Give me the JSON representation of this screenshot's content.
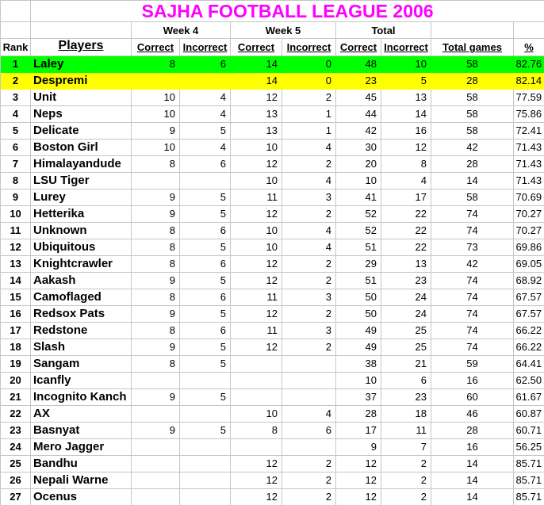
{
  "title": "SAJHA FOOTBALL LEAGUE 2006",
  "colors": {
    "title_text": "#FF00FF",
    "rank1_row_bg": "#00FF00",
    "rank2_row_bg": "#FFFF00",
    "gridline": "#C6C6C6"
  },
  "columns": {
    "rank": "Rank",
    "players": "Players",
    "week4": "Week 4",
    "week5": "Week 5",
    "total": "Total",
    "correct": "Correct",
    "incorrect": "Incorrect",
    "total_games": "Total games",
    "percent": "%"
  },
  "rows": [
    {
      "rank": "1",
      "player": "Laley",
      "w4c": "8",
      "w4i": "6",
      "w5c": "14",
      "w5i": "0",
      "tc": "48",
      "ti": "10",
      "games": "58",
      "pct": "82.76",
      "highlight": "green"
    },
    {
      "rank": "2",
      "player": "Despremi",
      "w4c": "",
      "w4i": "",
      "w5c": "14",
      "w5i": "0",
      "tc": "23",
      "ti": "5",
      "games": "28",
      "pct": "82.14",
      "highlight": "yellow"
    },
    {
      "rank": "3",
      "player": "Unit",
      "w4c": "10",
      "w4i": "4",
      "w5c": "12",
      "w5i": "2",
      "tc": "45",
      "ti": "13",
      "games": "58",
      "pct": "77.59",
      "highlight": ""
    },
    {
      "rank": "4",
      "player": "Neps",
      "w4c": "10",
      "w4i": "4",
      "w5c": "13",
      "w5i": "1",
      "tc": "44",
      "ti": "14",
      "games": "58",
      "pct": "75.86",
      "highlight": ""
    },
    {
      "rank": "5",
      "player": "Delicate",
      "w4c": "9",
      "w4i": "5",
      "w5c": "13",
      "w5i": "1",
      "tc": "42",
      "ti": "16",
      "games": "58",
      "pct": "72.41",
      "highlight": ""
    },
    {
      "rank": "6",
      "player": "Boston Girl",
      "w4c": "10",
      "w4i": "4",
      "w5c": "10",
      "w5i": "4",
      "tc": "30",
      "ti": "12",
      "games": "42",
      "pct": "71.43",
      "highlight": ""
    },
    {
      "rank": "7",
      "player": "Himalayandude",
      "w4c": "8",
      "w4i": "6",
      "w5c": "12",
      "w5i": "2",
      "tc": "20",
      "ti": "8",
      "games": "28",
      "pct": "71.43",
      "highlight": ""
    },
    {
      "rank": "8",
      "player": "LSU Tiger",
      "w4c": "",
      "w4i": "",
      "w5c": "10",
      "w5i": "4",
      "tc": "10",
      "ti": "4",
      "games": "14",
      "pct": "71.43",
      "highlight": ""
    },
    {
      "rank": "9",
      "player": "Lurey",
      "w4c": "9",
      "w4i": "5",
      "w5c": "11",
      "w5i": "3",
      "tc": "41",
      "ti": "17",
      "games": "58",
      "pct": "70.69",
      "highlight": ""
    },
    {
      "rank": "10",
      "player": "Hetterika",
      "w4c": "9",
      "w4i": "5",
      "w5c": "12",
      "w5i": "2",
      "tc": "52",
      "ti": "22",
      "games": "74",
      "pct": "70.27",
      "highlight": ""
    },
    {
      "rank": "11",
      "player": "Unknown",
      "w4c": "8",
      "w4i": "6",
      "w5c": "10",
      "w5i": "4",
      "tc": "52",
      "ti": "22",
      "games": "74",
      "pct": "70.27",
      "highlight": ""
    },
    {
      "rank": "12",
      "player": "Ubiquitous",
      "w4c": "8",
      "w4i": "5",
      "w5c": "10",
      "w5i": "4",
      "tc": "51",
      "ti": "22",
      "games": "73",
      "pct": "69.86",
      "highlight": ""
    },
    {
      "rank": "13",
      "player": "Knightcrawler",
      "w4c": "8",
      "w4i": "6",
      "w5c": "12",
      "w5i": "2",
      "tc": "29",
      "ti": "13",
      "games": "42",
      "pct": "69.05",
      "highlight": ""
    },
    {
      "rank": "14",
      "player": "Aakash",
      "w4c": "9",
      "w4i": "5",
      "w5c": "12",
      "w5i": "2",
      "tc": "51",
      "ti": "23",
      "games": "74",
      "pct": "68.92",
      "highlight": ""
    },
    {
      "rank": "15",
      "player": "Camoflaged",
      "w4c": "8",
      "w4i": "6",
      "w5c": "11",
      "w5i": "3",
      "tc": "50",
      "ti": "24",
      "games": "74",
      "pct": "67.57",
      "highlight": ""
    },
    {
      "rank": "16",
      "player": "Redsox Pats",
      "w4c": "9",
      "w4i": "5",
      "w5c": "12",
      "w5i": "2",
      "tc": "50",
      "ti": "24",
      "games": "74",
      "pct": "67.57",
      "highlight": ""
    },
    {
      "rank": "17",
      "player": "Redstone",
      "w4c": "8",
      "w4i": "6",
      "w5c": "11",
      "w5i": "3",
      "tc": "49",
      "ti": "25",
      "games": "74",
      "pct": "66.22",
      "highlight": ""
    },
    {
      "rank": "18",
      "player": "Slash",
      "w4c": "9",
      "w4i": "5",
      "w5c": "12",
      "w5i": "2",
      "tc": "49",
      "ti": "25",
      "games": "74",
      "pct": "66.22",
      "highlight": ""
    },
    {
      "rank": "19",
      "player": "Sangam",
      "w4c": "8",
      "w4i": "5",
      "w5c": "",
      "w5i": "",
      "tc": "38",
      "ti": "21",
      "games": "59",
      "pct": "64.41",
      "highlight": ""
    },
    {
      "rank": "20",
      "player": "Icanfly",
      "w4c": "",
      "w4i": "",
      "w5c": "",
      "w5i": "",
      "tc": "10",
      "ti": "6",
      "games": "16",
      "pct": "62.50",
      "highlight": ""
    },
    {
      "rank": "21",
      "player": "Incognito Kanch",
      "w4c": "9",
      "w4i": "5",
      "w5c": "",
      "w5i": "",
      "tc": "37",
      "ti": "23",
      "games": "60",
      "pct": "61.67",
      "highlight": ""
    },
    {
      "rank": "22",
      "player": "AX",
      "w4c": "",
      "w4i": "",
      "w5c": "10",
      "w5i": "4",
      "tc": "28",
      "ti": "18",
      "games": "46",
      "pct": "60.87",
      "highlight": ""
    },
    {
      "rank": "23",
      "player": "Basnyat",
      "w4c": "9",
      "w4i": "5",
      "w5c": "8",
      "w5i": "6",
      "tc": "17",
      "ti": "11",
      "games": "28",
      "pct": "60.71",
      "highlight": ""
    },
    {
      "rank": "24",
      "player": "Mero Jagger",
      "w4c": "",
      "w4i": "",
      "w5c": "",
      "w5i": "",
      "tc": "9",
      "ti": "7",
      "games": "16",
      "pct": "56.25",
      "highlight": ""
    },
    {
      "rank": "25",
      "player": "Bandhu",
      "w4c": "",
      "w4i": "",
      "w5c": "12",
      "w5i": "2",
      "tc": "12",
      "ti": "2",
      "games": "14",
      "pct": "85.71",
      "highlight": ""
    },
    {
      "rank": "26",
      "player": "Nepali Warne",
      "w4c": "",
      "w4i": "",
      "w5c": "12",
      "w5i": "2",
      "tc": "12",
      "ti": "2",
      "games": "14",
      "pct": "85.71",
      "highlight": ""
    },
    {
      "rank": "27",
      "player": "Ocenus",
      "w4c": "",
      "w4i": "",
      "w5c": "12",
      "w5i": "2",
      "tc": "12",
      "ti": "2",
      "games": "14",
      "pct": "85.71",
      "highlight": ""
    }
  ]
}
